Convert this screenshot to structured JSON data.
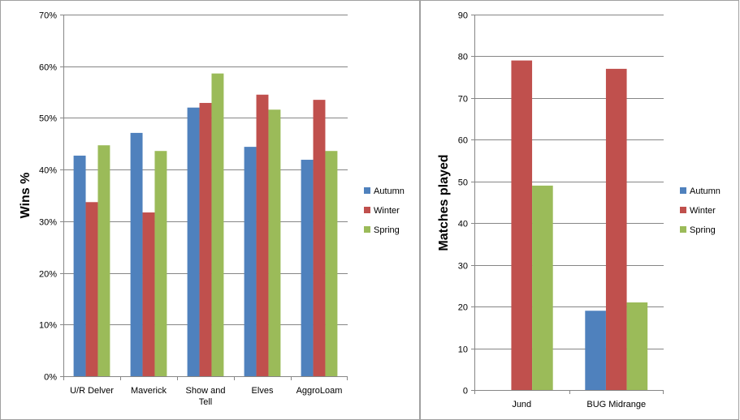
{
  "colors": {
    "autumn": "#4f81bd",
    "winter": "#c0504d",
    "spring": "#9bbb59",
    "grid": "#868686",
    "border": "#a0a0a0"
  },
  "chart_data": [
    {
      "type": "bar",
      "title": "",
      "xlabel": "",
      "ylabel": "Wins %",
      "ylim": [
        0,
        70
      ],
      "ytick_step": 10,
      "ytick_suffix": "%",
      "categories": [
        [
          "U/R Delver"
        ],
        [
          "Maverick"
        ],
        [
          "Show and",
          "Tell"
        ],
        [
          "Elves"
        ],
        [
          "AggroLoam"
        ]
      ],
      "series": [
        {
          "name": "Autumn",
          "color": "#4f81bd",
          "values": [
            42.7,
            47.1,
            52.0,
            44.4,
            41.9
          ]
        },
        {
          "name": "Winter",
          "color": "#c0504d",
          "values": [
            33.7,
            31.7,
            52.9,
            54.5,
            53.5
          ]
        },
        {
          "name": "Spring",
          "color": "#9bbb59",
          "values": [
            44.7,
            43.6,
            58.6,
            51.6,
            43.6
          ]
        }
      ],
      "legend_position": "right",
      "grid": true
    },
    {
      "type": "bar",
      "title": "",
      "xlabel": "",
      "ylabel": "Matches played",
      "ylim": [
        0,
        90
      ],
      "ytick_step": 10,
      "ytick_suffix": "",
      "categories": [
        [
          "Jund"
        ],
        [
          "BUG Midrange"
        ]
      ],
      "series": [
        {
          "name": "Autumn",
          "color": "#4f81bd",
          "values": [
            0,
            19
          ]
        },
        {
          "name": "Winter",
          "color": "#c0504d",
          "values": [
            79,
            77
          ]
        },
        {
          "name": "Spring",
          "color": "#9bbb59",
          "values": [
            49,
            21
          ]
        }
      ],
      "legend_position": "right",
      "grid": true
    }
  ]
}
